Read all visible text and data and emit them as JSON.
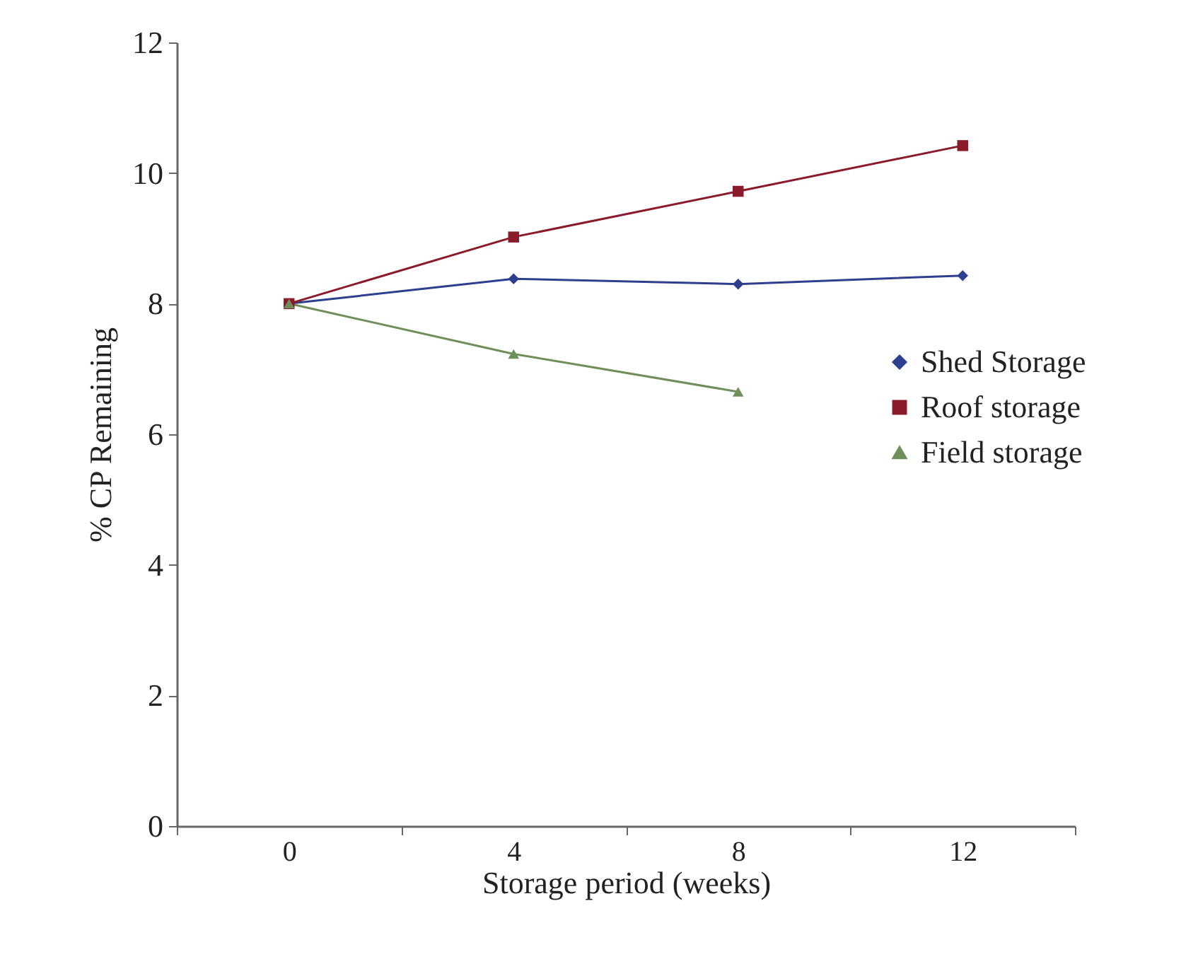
{
  "chart_data": {
    "type": "line",
    "xlabel": "Storage  period (weeks)",
    "ylabel": "% CP Remaining",
    "categories": [
      "0",
      "4",
      "8",
      "12"
    ],
    "series": [
      {
        "name": "Shed Storage",
        "color": "#2e3f8f",
        "marker": "diamond",
        "values": [
          8.0,
          8.38,
          8.3,
          8.43
        ]
      },
      {
        "name": "Roof storage",
        "color": "#8b1a2a",
        "marker": "square",
        "values": [
          8.0,
          9.02,
          9.72,
          10.42
        ]
      },
      {
        "name": "Field storage",
        "color": "#6f8f5a",
        "marker": "triangle",
        "values": [
          8.0,
          7.23,
          6.65,
          null
        ]
      }
    ],
    "ylim": [
      0,
      12
    ],
    "yticks": [
      0,
      2,
      4,
      6,
      8,
      10,
      12
    ],
    "grid": false,
    "legend": "right"
  }
}
